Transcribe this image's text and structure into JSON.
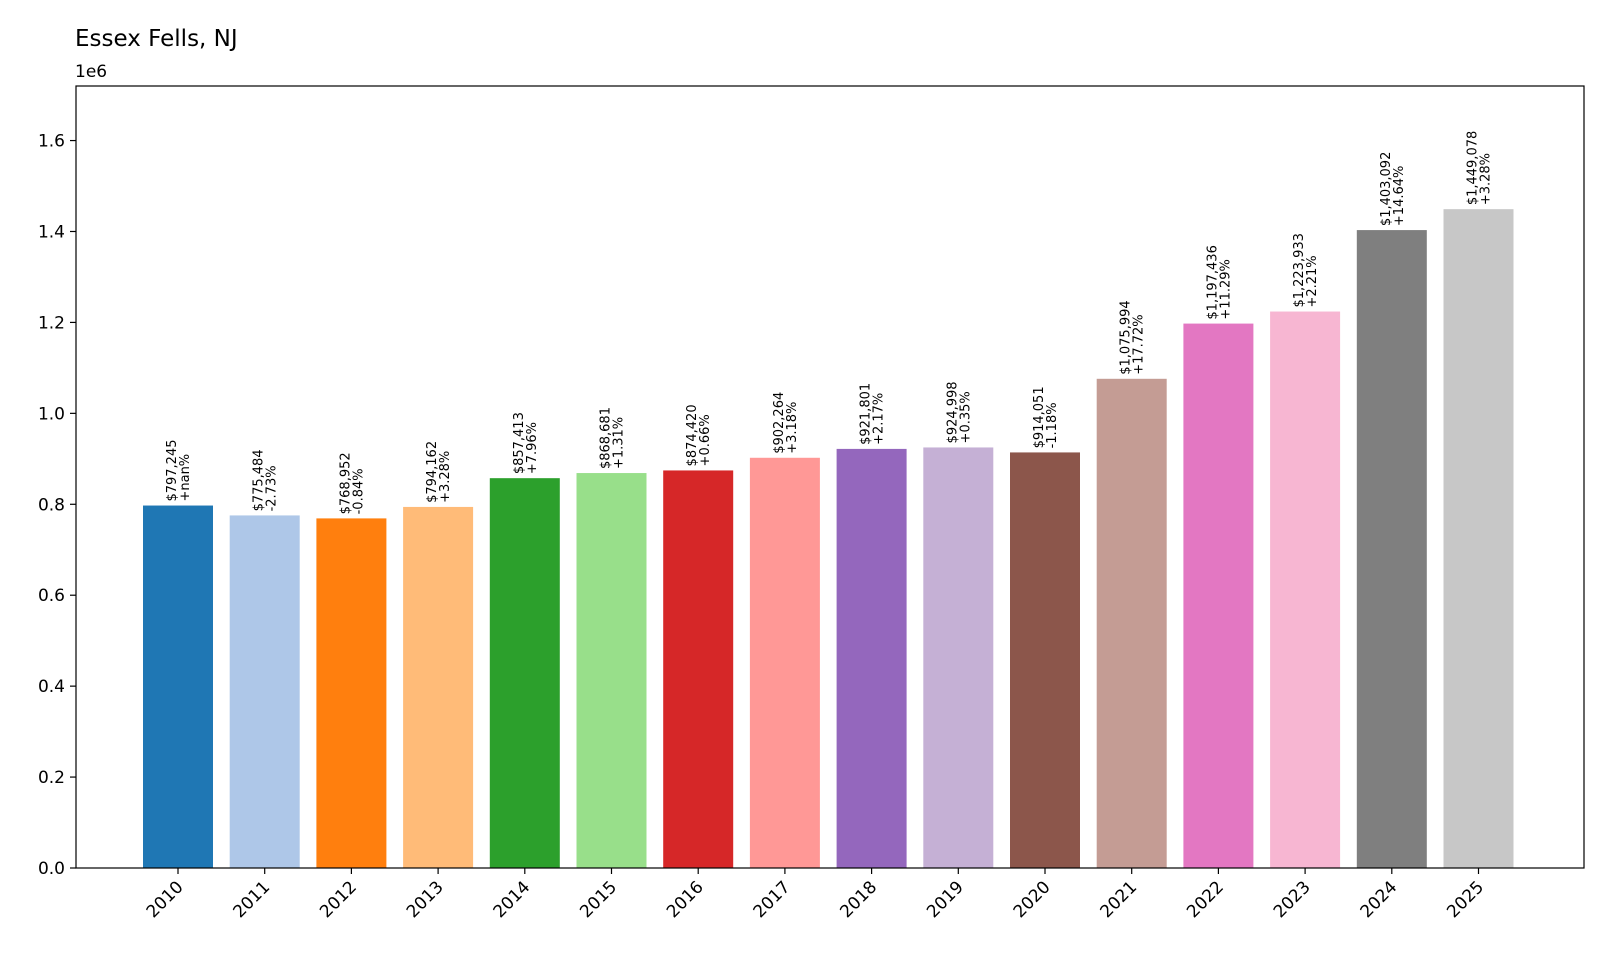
{
  "chart_data": {
    "type": "bar",
    "title": "Essex Fells, NJ",
    "y_offset_label": "1e6",
    "xlabel": "",
    "ylabel": "",
    "ylim": [
      0,
      1720000
    ],
    "yticks": [
      0,
      200000,
      400000,
      600000,
      800000,
      1000000,
      1200000,
      1400000,
      1600000
    ],
    "ytick_labels": [
      "0.0",
      "0.2",
      "0.4",
      "0.6",
      "0.8",
      "1.0",
      "1.2",
      "1.4",
      "1.6"
    ],
    "grid": false,
    "legend": "none",
    "categories": [
      "2010",
      "2011",
      "2012",
      "2013",
      "2014",
      "2015",
      "2016",
      "2017",
      "2018",
      "2019",
      "2020",
      "2021",
      "2022",
      "2023",
      "2024",
      "2025"
    ],
    "values": [
      797245,
      775484,
      768952,
      794162,
      857413,
      868681,
      874420,
      902264,
      921801,
      924998,
      914051,
      1075994,
      1197436,
      1223933,
      1403092,
      1449078
    ],
    "value_labels": [
      "$797,245",
      "$775,484",
      "$768,952",
      "$794,162",
      "$857,413",
      "$868,681",
      "$874,420",
      "$902,264",
      "$921,801",
      "$924,998",
      "$914,051",
      "$1,075,994",
      "$1,197,436",
      "$1,223,933",
      "$1,403,092",
      "$1,449,078"
    ],
    "change_labels": [
      "+nan%",
      "-2.73%",
      "-0.84%",
      "+3.28%",
      "+7.96%",
      "+1.31%",
      "+0.66%",
      "+3.18%",
      "+2.17%",
      "+0.35%",
      "-1.18%",
      "+17.72%",
      "+11.29%",
      "+2.21%",
      "+14.64%",
      "+3.28%"
    ],
    "colors": [
      "#1f77b4",
      "#aec7e8",
      "#ff7f0e",
      "#ffbb78",
      "#2ca02c",
      "#98df8a",
      "#d62728",
      "#ff9896",
      "#9467bd",
      "#c5b0d5",
      "#8c564b",
      "#c49c94",
      "#e377c2",
      "#f7b6d2",
      "#7f7f7f",
      "#c7c7c7"
    ]
  }
}
